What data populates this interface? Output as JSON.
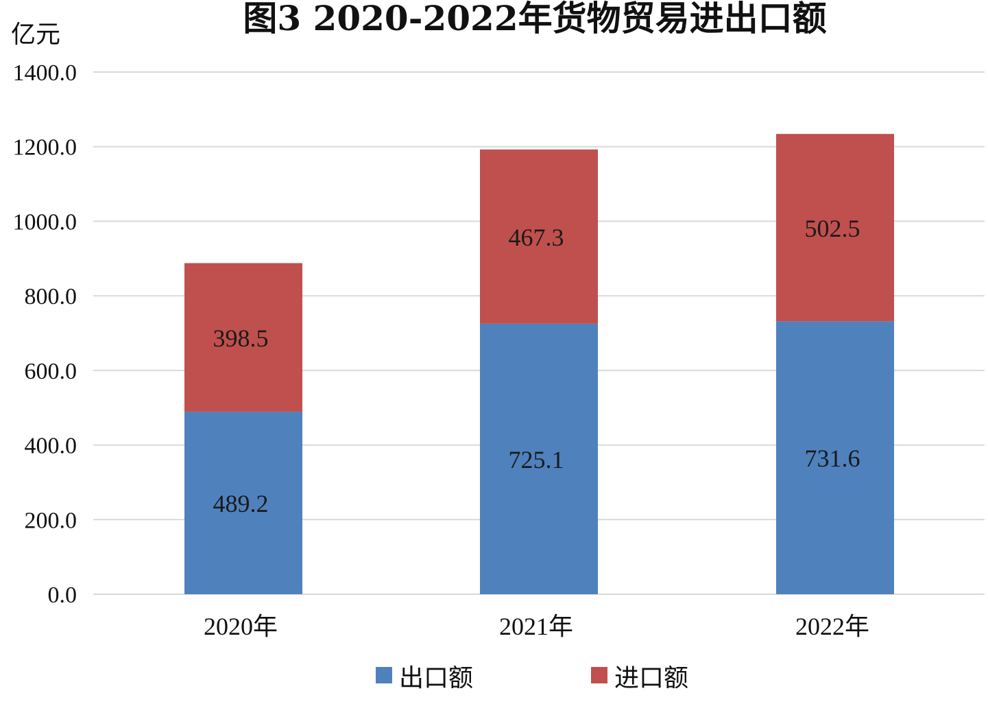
{
  "chart_data": {
    "type": "bar",
    "stacked": true,
    "title": "图3  2020-2022年货物贸易进出口额",
    "ylabel": "亿元",
    "xlabel": "",
    "ylim": [
      0,
      1400
    ],
    "yticks": [
      0,
      200,
      400,
      600,
      800,
      1000,
      1200,
      1400
    ],
    "ytick_labels": [
      "0.0",
      "200.0",
      "400.0",
      "600.0",
      "800.0",
      "1000.0",
      "1200.0",
      "1400.0"
    ],
    "categories": [
      "2020年",
      "2021年",
      "2022年"
    ],
    "series": [
      {
        "name": "出口额",
        "color": "#4f81bd",
        "values": [
          489.2,
          725.1,
          731.6
        ],
        "labels": [
          "489.2",
          "725.1",
          "731.6"
        ]
      },
      {
        "name": "进口额",
        "color": "#c0504d",
        "values": [
          398.5,
          467.3,
          502.5
        ],
        "labels": [
          "398.5",
          "467.3",
          "502.5"
        ]
      }
    ],
    "grid": true,
    "legend_position": "bottom"
  }
}
